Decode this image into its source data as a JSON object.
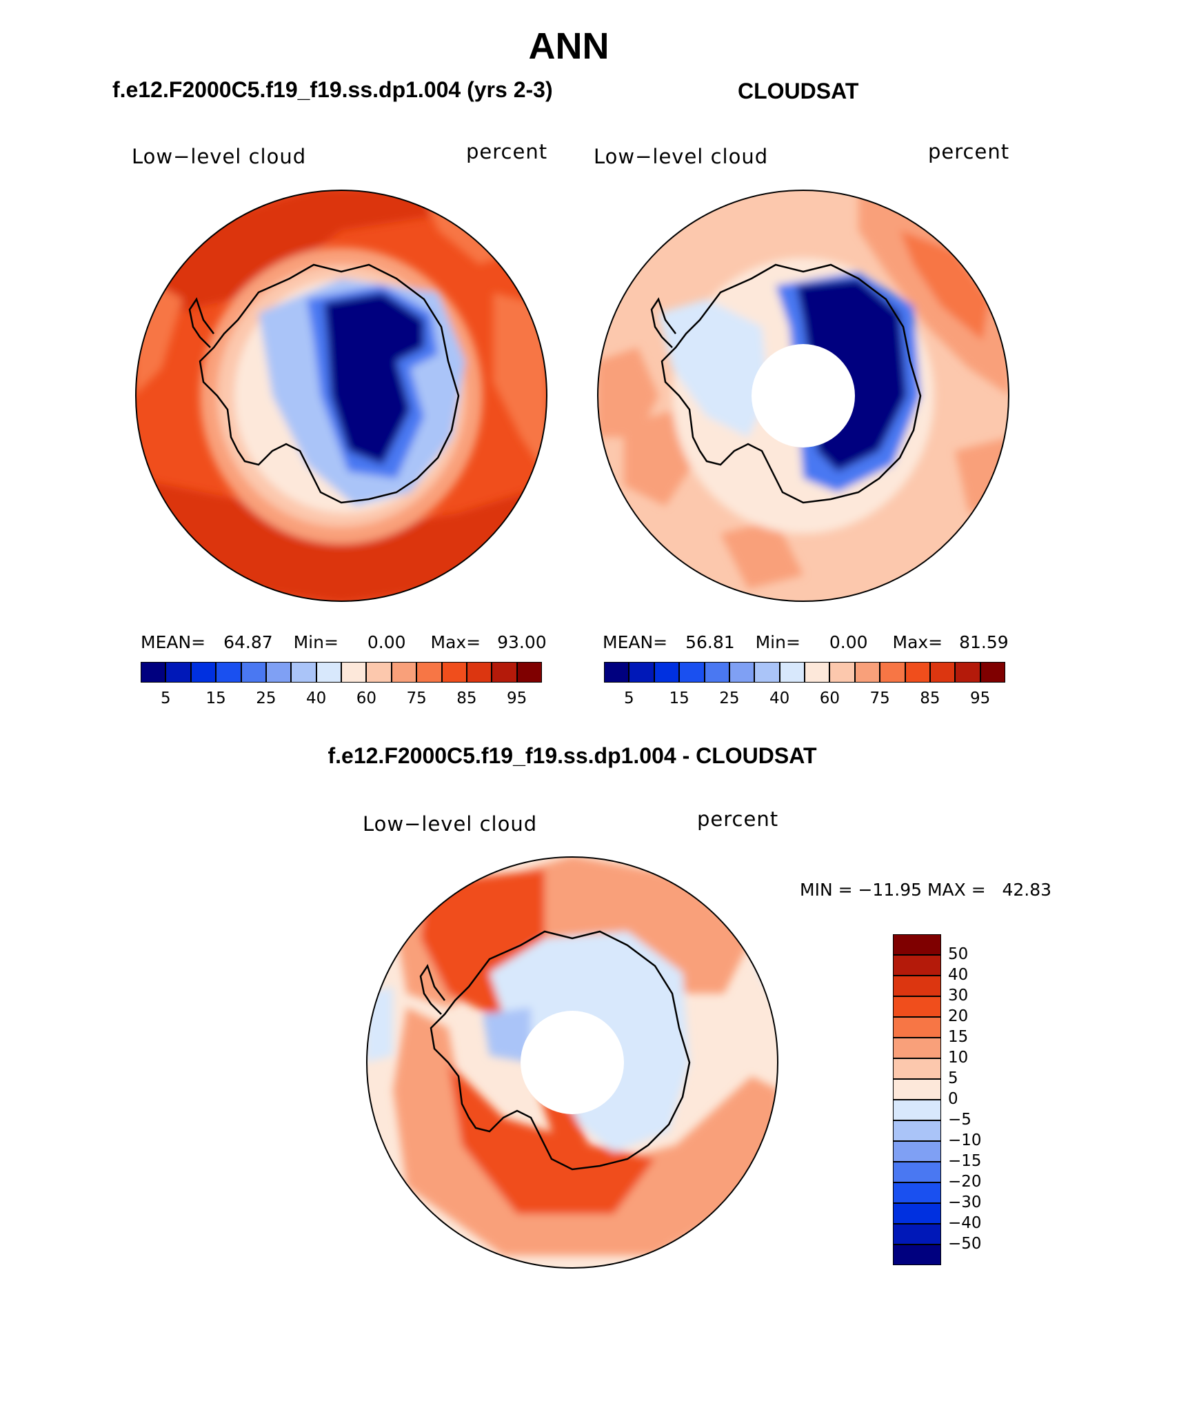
{
  "main_title": "ANN",
  "panels": [
    {
      "header": "f.e12.F2000C5.f19_f19.ss.dp1.004 (yrs 2-3)",
      "variable": "Low−level cloud",
      "units": "percent",
      "stats": {
        "mean_label": "MEAN=",
        "mean": "64.87",
        "min_label": "Min=",
        "min": "0.00",
        "max_label": "Max=",
        "max": "93.00"
      }
    },
    {
      "header": "CLOUDSAT",
      "variable": "Low−level cloud",
      "units": "percent",
      "stats": {
        "mean_label": "MEAN=",
        "mean": "56.81",
        "min_label": "Min=",
        "min": "0.00",
        "max_label": "Max=",
        "max": "81.59"
      }
    },
    {
      "header": "f.e12.F2000C5.f19_f19.ss.dp1.004 - CLOUDSAT",
      "variable": "Low−level cloud",
      "units": "percent",
      "minmax": "MIN = −11.95 MAX =   42.83"
    }
  ],
  "colorbar_abs": {
    "colors": [
      "#00007f",
      "#0018b8",
      "#0030e0",
      "#1a50f0",
      "#4a78f2",
      "#7fa0f4",
      "#aac4f8",
      "#d8e8fc",
      "#fde8da",
      "#fcc8ad",
      "#f9a07a",
      "#f77645",
      "#f04e1c",
      "#dc3610",
      "#b41a0a",
      "#7f0000"
    ],
    "labels": [
      "5",
      "15",
      "25",
      "40",
      "60",
      "75",
      "85",
      "95"
    ]
  },
  "colorbar_diff": {
    "colors": [
      "#7f0000",
      "#b41a0a",
      "#dc3610",
      "#f04e1c",
      "#f77645",
      "#f9a07a",
      "#fcc8ad",
      "#fde8da",
      "#d8e8fc",
      "#aac4f8",
      "#7fa0f4",
      "#4a78f2",
      "#1a50f0",
      "#0030e0",
      "#0018b8",
      "#00007f"
    ],
    "labels": [
      "50",
      "40",
      "30",
      "20",
      "15",
      "10",
      "5",
      "0",
      "−5",
      "−10",
      "−15",
      "−20",
      "−30",
      "−40",
      "−50"
    ]
  }
}
